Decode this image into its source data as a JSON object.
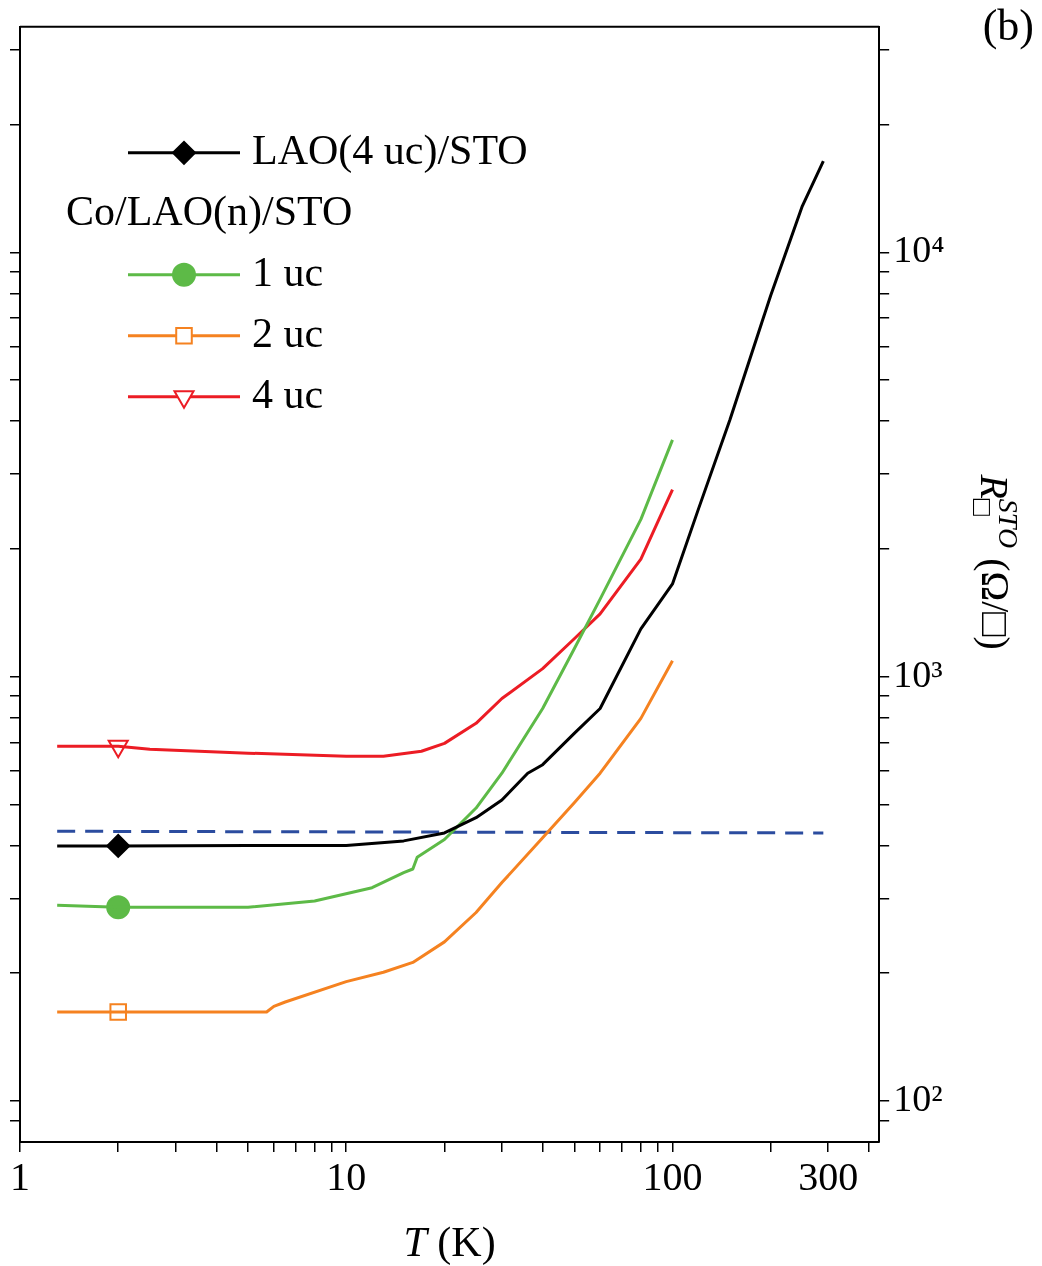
{
  "chart_data": {
    "type": "line",
    "title": "(b)",
    "xlabel": "T (K)",
    "ylabel": "R$_{□}$$^{STO}$ (Ω/□)",
    "legend_title": "Co/LAO(n)/STO",
    "legend": "top left",
    "log": "xy",
    "grid": false,
    "xlim": [
      1,
      430
    ],
    "xticks": [
      1,
      {
        "value": 2,
        "label": null
      },
      {
        "value": 3,
        "label": null
      },
      {
        "value": 4,
        "label": null
      },
      {
        "value": 5,
        "label": null
      },
      {
        "value": 6,
        "label": null
      },
      {
        "value": 7,
        "label": null
      },
      {
        "value": 8,
        "label": null
      },
      {
        "value": 9,
        "label": null
      },
      10,
      {
        "value": 20,
        "label": null
      },
      {
        "value": 30,
        "label": null
      },
      {
        "value": 40,
        "label": null
      },
      {
        "value": 50,
        "label": null
      },
      {
        "value": 60,
        "label": null
      },
      {
        "value": 70,
        "label": null
      },
      {
        "value": 80,
        "label": null
      },
      {
        "value": 90,
        "label": null
      },
      100,
      {
        "value": 200,
        "label": null
      },
      300,
      {
        "value": 400,
        "label": null
      }
    ],
    "ylim": [
      80,
      34000
    ],
    "yticks": [
      {
        "value": 90,
        "label": null
      },
      {
        "value": 100,
        "label": "10²"
      },
      {
        "value": 200,
        "label": null
      },
      {
        "value": 300,
        "label": null
      },
      {
        "value": 400,
        "label": null
      },
      {
        "value": 500,
        "label": null
      },
      {
        "value": 600,
        "label": null
      },
      {
        "value": 700,
        "label": null
      },
      {
        "value": 800,
        "label": null
      },
      {
        "value": 900,
        "label": null
      },
      {
        "value": 1000,
        "label": "10³"
      },
      {
        "value": 2000,
        "label": null
      },
      {
        "value": 3000,
        "label": null
      },
      {
        "value": 4000,
        "label": null
      },
      {
        "value": 5000,
        "label": null
      },
      {
        "value": 6000,
        "label": null
      },
      {
        "value": 7000,
        "label": null
      },
      {
        "value": 8000,
        "label": null
      },
      {
        "value": 9000,
        "label": null
      },
      {
        "value": 10000,
        "label": "10⁴"
      },
      {
        "value": 20000,
        "label": null
      },
      {
        "value": 30000,
        "label": null
      }
    ],
    "series": [
      {
        "name": "LAO(4 uc)/STO",
        "color": "#000000",
        "x": [
          1.3,
          2,
          5,
          10,
          15,
          20,
          25,
          30,
          36,
          40,
          50,
          60,
          80,
          100,
          120,
          150,
          200,
          250,
          290
        ],
        "values": [
          399,
          399,
          400,
          400,
          410,
          428,
          465,
          512,
          592,
          620,
          735,
          841,
          1296,
          1653,
          2478,
          4030,
          7910,
          12850,
          16400
        ]
      },
      {
        "name": "1 uc",
        "color": "#5dba47",
        "x": [
          1.3,
          2,
          5,
          8,
          12,
          15,
          16,
          16.5,
          20,
          25,
          30,
          40,
          50,
          60,
          80,
          100
        ],
        "values": [
          289,
          286,
          286,
          296,
          318,
          345,
          352,
          375,
          413,
          490,
          592,
          841,
          1163,
          1523,
          2347,
          3613
        ]
      },
      {
        "name": "2 uc",
        "color": "#f58220",
        "x": [
          1.3,
          2,
          5.7,
          6,
          6.5,
          10,
          13,
          16,
          20,
          25,
          30,
          40,
          50,
          60,
          80,
          100
        ],
        "values": [
          162,
          162,
          162,
          167,
          171,
          191,
          201,
          212,
          237,
          278,
          327,
          417,
          504,
          592,
          797,
          1090
        ]
      },
      {
        "name": "4 uc",
        "color": "#ec1c24",
        "x": [
          1.3,
          2,
          2.5,
          5,
          10,
          13,
          17,
          20,
          25,
          30,
          40,
          50,
          60,
          80,
          100
        ],
        "values": [
          685,
          685,
          674,
          660,
          649,
          649,
          667,
          696,
          776,
          888,
          1044,
          1228,
          1405,
          1892,
          2760
        ]
      },
      {
        "color": "#2b4c9f",
        "line_style": "dashed",
        "x": [
          1.3,
          290
        ],
        "values": [
          432,
          428
        ]
      },
      {
        "type": "scatter",
        "color": "#000000",
        "marker": "diamond",
        "x": [
          2
        ],
        "values": [
          399
        ]
      },
      {
        "type": "scatter",
        "color": "#5dba47",
        "marker": "circle",
        "x": [
          2
        ],
        "values": [
          286
        ]
      },
      {
        "type": "scatter",
        "color": "#f58220",
        "marker": "square",
        "x": [
          2
        ],
        "values": [
          162
        ]
      },
      {
        "type": "scatter",
        "color": "#ec1c24",
        "marker": "triangle",
        "x": [
          2
        ],
        "values": [
          685
        ]
      }
    ]
  }
}
